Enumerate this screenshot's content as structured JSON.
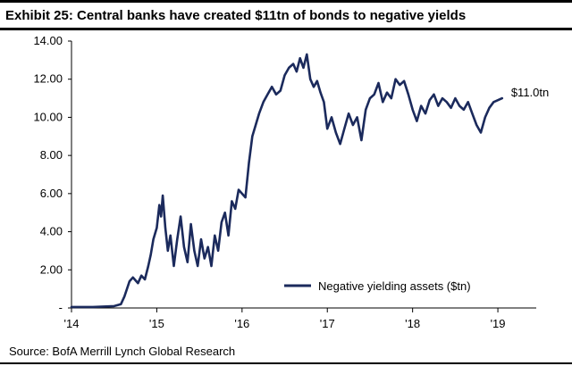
{
  "exhibit_title": "Exhibit 25: Central banks have created $11tn of bonds to negative yields",
  "source": "Source: BofA Merrill Lynch Global Research",
  "colors": {
    "series": "#1b2a5c",
    "axis": "#000000"
  },
  "chart_data": {
    "type": "line",
    "title": "Exhibit 25: Central banks have created $11tn of bonds to negative yields",
    "xlabel": "",
    "ylabel": "",
    "ylim": [
      0,
      14
    ],
    "xlim": [
      2014.0,
      2019.45
    ],
    "y_ticks": [
      "-",
      "2.00",
      "4.00",
      "6.00",
      "8.00",
      "10.00",
      "12.00",
      "14.00"
    ],
    "x_ticks": [
      {
        "label": "'14",
        "x": 2014.0
      },
      {
        "label": "'15",
        "x": 2015.0
      },
      {
        "label": "'16",
        "x": 2016.0
      },
      {
        "label": "'17",
        "x": 2017.0
      },
      {
        "label": "'18",
        "x": 2018.0
      },
      {
        "label": "'19",
        "x": 2019.0
      }
    ],
    "grid": false,
    "legend_position": "bottom-right",
    "series": [
      {
        "name": "Negative yielding assets ($tn)",
        "end_label": "$11.0tn",
        "x": [
          2014.0,
          2014.25,
          2014.5,
          2014.58,
          2014.62,
          2014.68,
          2014.72,
          2014.78,
          2014.82,
          2014.86,
          2014.9,
          2014.93,
          2014.96,
          2015.0,
          2015.03,
          2015.05,
          2015.07,
          2015.1,
          2015.13,
          2015.16,
          2015.2,
          2015.24,
          2015.28,
          2015.32,
          2015.36,
          2015.4,
          2015.44,
          2015.48,
          2015.52,
          2015.56,
          2015.6,
          2015.64,
          2015.68,
          2015.72,
          2015.76,
          2015.8,
          2015.84,
          2015.88,
          2015.92,
          2015.96,
          2016.0,
          2016.04,
          2016.08,
          2016.12,
          2016.16,
          2016.2,
          2016.25,
          2016.3,
          2016.35,
          2016.4,
          2016.45,
          2016.5,
          2016.55,
          2016.6,
          2016.64,
          2016.68,
          2016.72,
          2016.76,
          2016.8,
          2016.84,
          2016.88,
          2016.92,
          2016.96,
          2017.0,
          2017.05,
          2017.1,
          2017.15,
          2017.2,
          2017.25,
          2017.3,
          2017.35,
          2017.4,
          2017.45,
          2017.5,
          2017.55,
          2017.6,
          2017.65,
          2017.7,
          2017.75,
          2017.8,
          2017.85,
          2017.9,
          2017.95,
          2018.0,
          2018.05,
          2018.1,
          2018.15,
          2018.2,
          2018.25,
          2018.3,
          2018.35,
          2018.4,
          2018.45,
          2018.5,
          2018.55,
          2018.6,
          2018.65,
          2018.7,
          2018.75,
          2018.8,
          2018.85,
          2018.9,
          2018.95,
          2019.0,
          2019.05
        ],
        "values": [
          0.05,
          0.05,
          0.1,
          0.2,
          0.6,
          1.4,
          1.6,
          1.3,
          1.7,
          1.5,
          2.2,
          2.8,
          3.6,
          4.2,
          5.4,
          4.8,
          5.9,
          4.2,
          3.0,
          3.8,
          2.2,
          3.6,
          4.8,
          3.2,
          2.4,
          4.4,
          3.0,
          2.2,
          3.6,
          2.6,
          3.2,
          2.2,
          3.8,
          3.0,
          4.5,
          5.0,
          3.8,
          5.6,
          5.2,
          6.2,
          6.0,
          5.8,
          7.6,
          9.0,
          9.6,
          10.2,
          10.8,
          11.2,
          11.6,
          11.2,
          11.4,
          12.2,
          12.6,
          12.8,
          12.4,
          13.1,
          12.6,
          13.3,
          12.0,
          11.6,
          11.9,
          11.3,
          10.8,
          9.4,
          10.0,
          9.2,
          8.6,
          9.4,
          10.2,
          9.6,
          10.0,
          8.8,
          10.4,
          11.0,
          11.2,
          11.8,
          10.8,
          11.3,
          11.0,
          12.0,
          11.7,
          11.9,
          11.2,
          10.4,
          9.8,
          10.6,
          10.2,
          10.9,
          11.2,
          10.6,
          11.0,
          10.8,
          10.5,
          11.0,
          10.6,
          10.4,
          10.8,
          10.2,
          9.6,
          9.2,
          10.0,
          10.5,
          10.8,
          10.9,
          11.0
        ]
      }
    ]
  }
}
